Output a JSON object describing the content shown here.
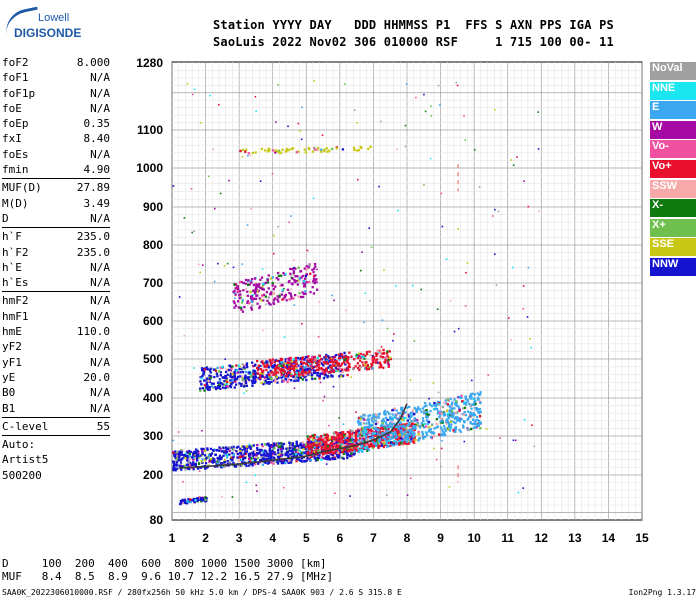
{
  "logo": {
    "line1": "Lowell",
    "line2": "DIGISONDE"
  },
  "header": {
    "labels": "Station YYYY DAY   DDD HHMMSS P1  FFS S AXN PPS IGA PS",
    "values": "SaoLuis 2022 Nov02 306 010000 RSF     1 715 100 00- 11"
  },
  "params_group1": [
    {
      "k": "foF2",
      "v": "8.000"
    },
    {
      "k": "foF1",
      "v": "N/A"
    },
    {
      "k": "foF1p",
      "v": "N/A"
    },
    {
      "k": "foE",
      "v": "N/A"
    },
    {
      "k": "foEp",
      "v": "0.35"
    },
    {
      "k": "fxI",
      "v": "8.40"
    },
    {
      "k": "foEs",
      "v": "N/A"
    },
    {
      "k": "fmin",
      "v": "4.90"
    }
  ],
  "params_group2": [
    {
      "k": "MUF(D)",
      "v": "27.89"
    },
    {
      "k": "M(D)",
      "v": "3.49"
    },
    {
      "k": "D",
      "v": "N/A"
    }
  ],
  "params_group3": [
    {
      "k": "h`F",
      "v": "235.0"
    },
    {
      "k": "h`F2",
      "v": "235.0"
    },
    {
      "k": "h`E",
      "v": "N/A"
    },
    {
      "k": "h`Es",
      "v": "N/A"
    }
  ],
  "params_group4": [
    {
      "k": "hmF2",
      "v": "N/A"
    },
    {
      "k": "hmF1",
      "v": "N/A"
    },
    {
      "k": "hmE",
      "v": "110.0"
    },
    {
      "k": "yF2",
      "v": "N/A"
    },
    {
      "k": "yF1",
      "v": "N/A"
    },
    {
      "k": "yE",
      "v": "20.0"
    },
    {
      "k": "B0",
      "v": "N/A"
    },
    {
      "k": "B1",
      "v": "N/A"
    }
  ],
  "clevel": {
    "k": "C-level",
    "v": "55"
  },
  "auto": {
    "line1": "Auto:",
    "line2": "Artist5",
    "line3": "500200"
  },
  "legend": [
    {
      "label": "NoVal",
      "color": "#a0a0a0"
    },
    {
      "label": "NNE",
      "color": "#19e6f0"
    },
    {
      "label": "E",
      "color": "#3ba7f0"
    },
    {
      "label": "W",
      "color": "#a50aa5"
    },
    {
      "label": "Vo-",
      "color": "#f050a0"
    },
    {
      "label": "Vo+",
      "color": "#e8102d"
    },
    {
      "label": "SSW",
      "color": "#f7a8a8"
    },
    {
      "label": "X-",
      "color": "#0f7a0f"
    },
    {
      "label": "X+",
      "color": "#6fbf4f"
    },
    {
      "label": "SSE",
      "color": "#c8c814"
    },
    {
      "label": "NNW",
      "color": "#1414d0"
    }
  ],
  "table": {
    "row1": "D     100  200  400  600  800 1000 1500 3000 [km]",
    "row2": "MUF   8.4  8.5  8.9  9.6 10.7 12.2 16.5 27.9 [MHz]"
  },
  "footer": {
    "left": "SAA0K_2022306010000.RSF / 280fx256h 50 kHz 5.0 km / DPS-4 SAA0K 903 / 2.6 S 315.8 E",
    "right": "Ion2Png 1.3.17"
  },
  "chart_data": {
    "type": "scatter",
    "x_ticks": [
      1,
      2,
      3,
      4,
      5,
      6,
      7,
      8,
      9,
      10,
      11,
      12,
      13,
      14,
      15
    ],
    "y_ticks": [
      80,
      200,
      300,
      400,
      500,
      600,
      700,
      800,
      900,
      1000,
      1100,
      1280
    ],
    "xlim": [
      1,
      15
    ],
    "ylim": [
      80,
      1280
    ],
    "grid": true,
    "legend_position": "right",
    "trace_x": [
      1.2,
      2,
      3,
      4,
      5,
      5.5,
      6,
      6.5,
      7,
      7.5,
      7.8,
      8
    ],
    "trace_y": [
      218,
      222,
      228,
      238,
      248,
      260,
      268,
      276,
      290,
      310,
      345,
      385
    ],
    "clusters": [
      {
        "name": "O-trace low",
        "x0": 1.0,
        "x1": 6.5,
        "y0": 212,
        "y1": 300,
        "n": 900,
        "color": "#1414d0"
      },
      {
        "name": "O-trace mid",
        "x0": 5.0,
        "x1": 8.2,
        "y0": 248,
        "y1": 340,
        "n": 700,
        "color": "#e8102d"
      },
      {
        "name": "spread",
        "x0": 6.5,
        "x1": 10.2,
        "y0": 260,
        "y1": 420,
        "n": 700,
        "color": "#3ba7f0"
      },
      {
        "name": "2nd hop",
        "x0": 1.8,
        "x1": 6.2,
        "y0": 420,
        "y1": 520,
        "n": 600,
        "color": "#1414d0"
      },
      {
        "name": "2nd hop red",
        "x0": 3.5,
        "x1": 7.5,
        "y0": 450,
        "y1": 530,
        "n": 350,
        "color": "#e8102d"
      },
      {
        "name": "3rd hop",
        "x0": 2.8,
        "x1": 5.3,
        "y0": 620,
        "y1": 760,
        "n": 250,
        "color": "#a50aa5"
      },
      {
        "name": "es",
        "x0": 1.2,
        "x1": 2.0,
        "y0": 125,
        "y1": 145,
        "n": 60,
        "color": "#1414d0"
      },
      {
        "name": "top",
        "x0": 3.0,
        "x1": 7.0,
        "y0": 1040,
        "y1": 1060,
        "n": 60,
        "color": "#c8c814"
      }
    ]
  }
}
